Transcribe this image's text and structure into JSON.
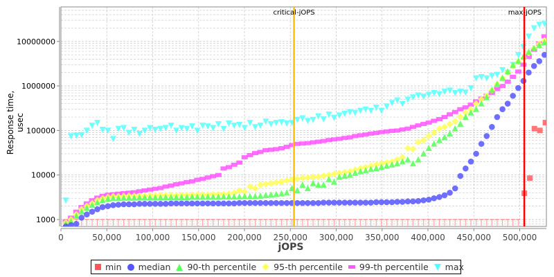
{
  "chart_data": {
    "type": "scatter",
    "title": "",
    "xlabel": "jOPS",
    "ylabel": "Response time, usec",
    "xlim": [
      0,
      530000
    ],
    "ylim": [
      600,
      50000000
    ],
    "yscale": "log",
    "x_ticks": [
      "0",
      "50,000",
      "100,000",
      "150,000",
      "200,000",
      "250,000",
      "300,000",
      "350,000",
      "400,000",
      "450,000",
      "500,000"
    ],
    "x_tick_values": [
      0,
      50000,
      100000,
      150000,
      200000,
      250000,
      300000,
      350000,
      400000,
      450000,
      500000
    ],
    "y_ticks": [
      "1000",
      "10000",
      "100000",
      "1000000",
      "10000000"
    ],
    "y_tick_values": [
      1000,
      10000,
      100000,
      1000000,
      10000000
    ],
    "grid": true,
    "legend_position": "bottom",
    "annotations": [
      {
        "label": "critical-jOPS",
        "x": 254000,
        "color": "#ffc000"
      },
      {
        "label": "max-jOPS",
        "x": 505000,
        "color": "#ff0000"
      }
    ],
    "series": [
      {
        "name": "min",
        "color": "#ff5555",
        "marker": "square",
        "note": "~1000 usec for all points up to max-jOPS; beyond max-jOPS: ",
        "tail_x": [
          505000,
          511000,
          516000,
          522000,
          528000
        ],
        "tail_y": [
          3900,
          8500,
          110000,
          100000,
          150000
        ]
      },
      {
        "name": "median",
        "color": "#5555ff",
        "marker": "circle"
      },
      {
        "name": "90-th percentile",
        "color": "#55ff55",
        "marker": "triangle-up"
      },
      {
        "name": "95-th percentile",
        "color": "#ffff55",
        "marker": "diamond"
      },
      {
        "name": "99-th percentile",
        "color": "#ff55ff",
        "marker": "rect"
      },
      {
        "name": "max",
        "color": "#55ffff",
        "marker": "triangle-down"
      }
    ],
    "x": [
      5300,
      11000,
      16800,
      22500,
      28200,
      34000,
      39700,
      45400,
      51200,
      56900,
      62600,
      68400,
      74100,
      79800,
      85600,
      91300,
      97000,
      102800,
      108500,
      114200,
      120000,
      125700,
      131400,
      137200,
      142900,
      148600,
      154400,
      160100,
      165800,
      171600,
      177300,
      183000,
      188800,
      194500,
      200200,
      206000,
      211700,
      217400,
      223200,
      228900,
      234600,
      240400,
      246100,
      251800,
      257600,
      263300,
      269000,
      274800,
      280500,
      286200,
      292000,
      297700,
      303400,
      309200,
      314900,
      320600,
      326400,
      332100,
      337800,
      343600,
      349300,
      355000,
      360800,
      366500,
      372200,
      378000,
      383700,
      389400,
      395200,
      400900,
      406600,
      412400,
      418100,
      423800,
      429600,
      435300,
      441000,
      446800,
      452500,
      458200,
      464000,
      469700,
      475400,
      481200,
      486900,
      492600,
      498400,
      504100,
      509800,
      515600,
      521300,
      527000
    ],
    "median": [
      700,
      750,
      800,
      1100,
      1300,
      1500,
      1700,
      1900,
      2000,
      2100,
      2150,
      2200,
      2200,
      2200,
      2250,
      2250,
      2250,
      2250,
      2250,
      2250,
      2300,
      2300,
      2300,
      2300,
      2300,
      2300,
      2300,
      2300,
      2300,
      2300,
      2300,
      2300,
      2300,
      2350,
      2350,
      2350,
      2350,
      2350,
      2350,
      2350,
      2350,
      2350,
      2350,
      2350,
      2350,
      2350,
      2350,
      2350,
      2350,
      2400,
      2400,
      2400,
      2400,
      2400,
      2400,
      2400,
      2400,
      2400,
      2400,
      2450,
      2450,
      2450,
      2450,
      2500,
      2500,
      2550,
      2550,
      2600,
      2700,
      2800,
      3000,
      3200,
      3500,
      4000,
      5000,
      9500,
      14000,
      20000,
      30000,
      50000,
      75000,
      120000,
      200000,
      300000,
      400000,
      600000,
      900000,
      1300000,
      2000000,
      2800000,
      3600000,
      5000000
    ],
    "p90": [
      800,
      900,
      1200,
      1500,
      1800,
      2100,
      2400,
      2700,
      2900,
      3000,
      3000,
      3050,
      3050,
      3050,
      3100,
      3100,
      3100,
      3100,
      3100,
      3150,
      3150,
      3150,
      3150,
      3150,
      3200,
      3200,
      3200,
      3200,
      3200,
      3200,
      3250,
      3250,
      3250,
      3250,
      3300,
      3300,
      3300,
      3400,
      3500,
      3600,
      3700,
      3800,
      4000,
      5000,
      4500,
      6000,
      5000,
      6500,
      6000,
      6000,
      8000,
      7000,
      9000,
      9500,
      10000,
      11000,
      12000,
      12500,
      13500,
      14000,
      15000,
      16000,
      17000,
      18000,
      20000,
      22000,
      18000,
      22000,
      30000,
      40000,
      50000,
      60000,
      70000,
      85000,
      110000,
      140000,
      200000,
      250000,
      300000,
      400000,
      550000,
      800000,
      1100000,
      1500000,
      2100000,
      2900000,
      3600000,
      4500000,
      5800000,
      7000000,
      8200000,
      9500000
    ],
    "p95": [
      850,
      1000,
      1300,
      1700,
      2000,
      2300,
      2700,
      3000,
      3200,
      3300,
      3300,
      3350,
      3400,
      3400,
      3400,
      3400,
      3450,
      3450,
      3500,
      3500,
      3500,
      3500,
      3550,
      3550,
      3600,
      3600,
      3600,
      3600,
      3700,
      3700,
      3700,
      3800,
      4000,
      4500,
      4200,
      5500,
      5000,
      6000,
      6200,
      6500,
      6800,
      7000,
      7500,
      8000,
      8200,
      8500,
      8800,
      9000,
      9200,
      9500,
      10000,
      10500,
      11000,
      11500,
      12000,
      13000,
      14000,
      15000,
      16000,
      17000,
      18000,
      19000,
      20000,
      22000,
      25000,
      40000,
      38000,
      55000,
      60000,
      75000,
      90000,
      110000,
      120000,
      140000,
      160000,
      200000,
      250000,
      300000,
      400000,
      500000,
      600000,
      800000,
      1100000,
      1500000,
      2000000,
      2800000,
      3500000,
      4200000,
      5500000,
      7000000,
      8800000,
      10500000
    ],
    "p99": [
      900,
      1100,
      1500,
      1900,
      2300,
      2700,
      3100,
      3400,
      3600,
      3700,
      3800,
      3900,
      4000,
      4100,
      4300,
      4500,
      4700,
      4900,
      5100,
      5500,
      5800,
      6200,
      6500,
      6900,
      7200,
      7800,
      8200,
      8800,
      9400,
      10000,
      14000,
      15000,
      17000,
      19000,
      25000,
      28000,
      31000,
      33000,
      36000,
      37000,
      38000,
      40000,
      43000,
      47000,
      50000,
      51000,
      52000,
      54000,
      56000,
      58000,
      61000,
      63000,
      65000,
      68000,
      70000,
      75000,
      78000,
      81000,
      85000,
      88000,
      92000,
      95000,
      98000,
      100000,
      105000,
      110000,
      120000,
      130000,
      140000,
      150000,
      165000,
      180000,
      200000,
      230000,
      260000,
      300000,
      330000,
      380000,
      450000,
      520000,
      600000,
      700000,
      850000,
      1000000,
      1250000,
      1600000,
      2100000,
      3000000,
      4500000,
      6500000,
      9000000,
      13000000
    ],
    "max": [
      2700,
      75000,
      78000,
      80000,
      100000,
      130000,
      150000,
      105000,
      100000,
      65000,
      110000,
      115000,
      90000,
      105000,
      85000,
      100000,
      115000,
      105000,
      110000,
      115000,
      130000,
      100000,
      115000,
      110000,
      125000,
      100000,
      130000,
      125000,
      115000,
      140000,
      110000,
      145000,
      130000,
      135000,
      115000,
      150000,
      120000,
      130000,
      160000,
      140000,
      150000,
      155000,
      145000,
      150000,
      175000,
      190000,
      165000,
      175000,
      210000,
      180000,
      230000,
      195000,
      220000,
      240000,
      260000,
      250000,
      280000,
      300000,
      280000,
      330000,
      280000,
      350000,
      420000,
      480000,
      400000,
      500000,
      560000,
      620000,
      580000,
      640000,
      700000,
      660000,
      750000,
      800000,
      700000,
      750000,
      720000,
      900000,
      1500000,
      1600000,
      1500000,
      1700000,
      1800000,
      2300000,
      2000000,
      3000000,
      5000000,
      7500000,
      13000000,
      20000000,
      24000000,
      25000000
    ]
  },
  "legend": {
    "items": [
      {
        "label": "min",
        "color": "#ff5555"
      },
      {
        "label": "median",
        "color": "#5555ff"
      },
      {
        "label": "90-th percentile",
        "color": "#55ff55"
      },
      {
        "label": "95-th percentile",
        "color": "#ffff55"
      },
      {
        "label": "99-th percentile",
        "color": "#ff55ff"
      },
      {
        "label": "max",
        "color": "#55ffff"
      }
    ]
  },
  "axes": {
    "xlabel": "jOPS",
    "ylabel": "Response time, usec"
  }
}
